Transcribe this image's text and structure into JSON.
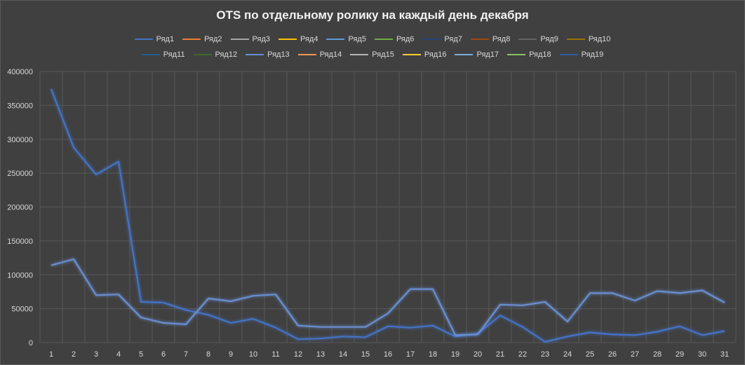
{
  "chart_data": {
    "type": "line",
    "title": "OTS по отдельному ролику на каждый день декабря",
    "xlabel": "",
    "ylabel": "",
    "ylim": [
      0,
      400000
    ],
    "y_ticks": [
      "0",
      "50000",
      "100000",
      "150000",
      "200000",
      "250000",
      "300000",
      "350000",
      "400000"
    ],
    "categories": [
      "1",
      "2",
      "3",
      "4",
      "5",
      "6",
      "7",
      "8",
      "9",
      "10",
      "11",
      "12",
      "13",
      "14",
      "15",
      "16",
      "17",
      "18",
      "19",
      "20",
      "21",
      "22",
      "23",
      "24",
      "25",
      "26",
      "27",
      "28",
      "29",
      "30",
      "31"
    ],
    "grid": true,
    "legend_position": "top",
    "series": [
      {
        "name": "Ряд1",
        "color": "#4472c4",
        "values": [
          374000,
          288000,
          248000,
          267000,
          60000,
          59000,
          48000,
          41000,
          29000,
          35000,
          22000,
          5000,
          6000,
          9000,
          8000,
          24000,
          22000,
          25000,
          9000,
          13000,
          40000,
          23000,
          1000,
          9000,
          15000,
          12000,
          11000,
          16000,
          24000,
          11000,
          17000
        ]
      },
      {
        "name": "Ряд2",
        "color": "#ed7d31",
        "values": [
          0,
          0,
          0,
          0,
          0,
          0,
          0,
          0,
          0,
          0,
          0,
          0,
          0,
          0,
          0,
          0,
          0,
          0,
          0,
          0,
          0,
          0,
          0,
          0,
          0,
          0,
          0,
          0,
          0,
          0,
          0
        ]
      },
      {
        "name": "Ряд3",
        "color": "#a5a5a5",
        "values": [
          0,
          0,
          0,
          0,
          0,
          0,
          0,
          0,
          0,
          0,
          0,
          0,
          0,
          0,
          0,
          0,
          0,
          0,
          0,
          0,
          0,
          0,
          0,
          0,
          0,
          0,
          0,
          0,
          0,
          0,
          0
        ]
      },
      {
        "name": "Ряд4",
        "color": "#ffc000",
        "values": [
          0,
          0,
          0,
          0,
          0,
          0,
          0,
          0,
          0,
          0,
          0,
          0,
          0,
          0,
          0,
          0,
          0,
          0,
          0,
          0,
          0,
          0,
          0,
          0,
          0,
          0,
          0,
          0,
          0,
          0,
          0
        ]
      },
      {
        "name": "Ряд5",
        "color": "#5b9bd5",
        "values": [
          0,
          0,
          0,
          0,
          0,
          0,
          0,
          0,
          0,
          0,
          0,
          0,
          0,
          0,
          0,
          0,
          0,
          0,
          0,
          0,
          0,
          0,
          0,
          0,
          0,
          0,
          0,
          0,
          0,
          0,
          0
        ]
      },
      {
        "name": "Ряд6",
        "color": "#70ad47",
        "values": [
          0,
          0,
          0,
          0,
          0,
          0,
          0,
          0,
          0,
          0,
          0,
          0,
          0,
          0,
          0,
          0,
          0,
          0,
          0,
          0,
          0,
          0,
          0,
          0,
          0,
          0,
          0,
          0,
          0,
          0,
          0
        ]
      },
      {
        "name": "Ряд7",
        "color": "#264478",
        "values": [
          0,
          0,
          0,
          0,
          0,
          0,
          0,
          0,
          0,
          0,
          0,
          0,
          0,
          0,
          0,
          0,
          0,
          0,
          0,
          0,
          0,
          0,
          0,
          0,
          0,
          0,
          0,
          0,
          0,
          0,
          0
        ]
      },
      {
        "name": "Ряд8",
        "color": "#9e480e",
        "values": [
          0,
          0,
          0,
          0,
          0,
          0,
          0,
          0,
          0,
          0,
          0,
          0,
          0,
          0,
          0,
          0,
          0,
          0,
          0,
          0,
          0,
          0,
          0,
          0,
          0,
          0,
          0,
          0,
          0,
          0,
          0
        ]
      },
      {
        "name": "Ряд9",
        "color": "#636363",
        "values": [
          0,
          0,
          0,
          0,
          0,
          0,
          0,
          0,
          0,
          0,
          0,
          0,
          0,
          0,
          0,
          0,
          0,
          0,
          0,
          0,
          0,
          0,
          0,
          0,
          0,
          0,
          0,
          0,
          0,
          0,
          0
        ]
      },
      {
        "name": "Ряд10",
        "color": "#997300",
        "values": [
          0,
          0,
          0,
          0,
          0,
          0,
          0,
          0,
          0,
          0,
          0,
          0,
          0,
          0,
          0,
          0,
          0,
          0,
          0,
          0,
          0,
          0,
          0,
          0,
          0,
          0,
          0,
          0,
          0,
          0,
          0
        ]
      },
      {
        "name": "Ряд11",
        "color": "#255e91",
        "values": [
          0,
          0,
          0,
          0,
          0,
          0,
          0,
          0,
          0,
          0,
          0,
          0,
          0,
          0,
          0,
          0,
          0,
          0,
          0,
          0,
          0,
          0,
          0,
          0,
          0,
          0,
          0,
          0,
          0,
          0,
          0
        ]
      },
      {
        "name": "Ряд12",
        "color": "#43682b",
        "values": [
          0,
          0,
          0,
          0,
          0,
          0,
          0,
          0,
          0,
          0,
          0,
          0,
          0,
          0,
          0,
          0,
          0,
          0,
          0,
          0,
          0,
          0,
          0,
          0,
          0,
          0,
          0,
          0,
          0,
          0,
          0
        ]
      },
      {
        "name": "Ряд13",
        "color": "#698ed0",
        "values": [
          114000,
          123000,
          70000,
          71000,
          37000,
          29000,
          27000,
          65000,
          61000,
          69000,
          71000,
          25000,
          23000,
          23000,
          23000,
          43000,
          79000,
          79000,
          11000,
          12000,
          56000,
          55000,
          60000,
          31000,
          73000,
          73000,
          62000,
          76000,
          73000,
          77000,
          59000
        ]
      },
      {
        "name": "Ряд14",
        "color": "#f1975a",
        "values": [
          0,
          0,
          0,
          0,
          0,
          0,
          0,
          0,
          0,
          0,
          0,
          0,
          0,
          0,
          0,
          0,
          0,
          0,
          0,
          0,
          0,
          0,
          0,
          0,
          0,
          0,
          0,
          0,
          0,
          0,
          0
        ]
      },
      {
        "name": "Ряд15",
        "color": "#b7b7b7",
        "values": [
          0,
          0,
          0,
          0,
          0,
          0,
          0,
          0,
          0,
          0,
          0,
          0,
          0,
          0,
          0,
          0,
          0,
          0,
          0,
          0,
          0,
          0,
          0,
          0,
          0,
          0,
          0,
          0,
          0,
          0,
          0
        ]
      },
      {
        "name": "Ряд16",
        "color": "#ffcd33",
        "values": [
          0,
          0,
          0,
          0,
          0,
          0,
          0,
          0,
          0,
          0,
          0,
          0,
          0,
          0,
          0,
          0,
          0,
          0,
          0,
          0,
          0,
          0,
          0,
          0,
          0,
          0,
          0,
          0,
          0,
          0,
          0
        ]
      },
      {
        "name": "Ряд17",
        "color": "#7cafdd",
        "values": [
          0,
          0,
          0,
          0,
          0,
          0,
          0,
          0,
          0,
          0,
          0,
          0,
          0,
          0,
          0,
          0,
          0,
          0,
          0,
          0,
          0,
          0,
          0,
          0,
          0,
          0,
          0,
          0,
          0,
          0,
          0
        ]
      },
      {
        "name": "Ряд18",
        "color": "#8cc168",
        "values": [
          0,
          0,
          0,
          0,
          0,
          0,
          0,
          0,
          0,
          0,
          0,
          0,
          0,
          0,
          0,
          0,
          0,
          0,
          0,
          0,
          0,
          0,
          0,
          0,
          0,
          0,
          0,
          0,
          0,
          0,
          0
        ]
      },
      {
        "name": "Ряд19",
        "color": "#335aa1",
        "values": [
          0,
          0,
          0,
          0,
          0,
          0,
          0,
          0,
          0,
          0,
          0,
          0,
          0,
          0,
          0,
          0,
          0,
          0,
          0,
          0,
          0,
          0,
          0,
          0,
          0,
          0,
          0,
          0,
          0,
          0,
          0
        ]
      }
    ]
  }
}
